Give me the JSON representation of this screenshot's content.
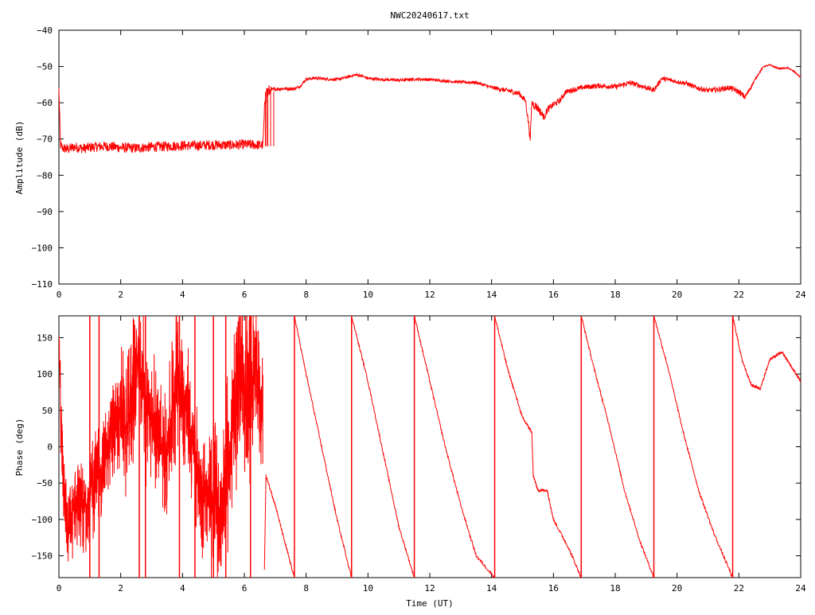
{
  "chart_data": [
    {
      "type": "line",
      "title": "NWC20240617.txt",
      "xlabel": "",
      "ylabel": "Amplitude (dB)",
      "xlim": [
        0,
        24
      ],
      "ylim": [
        -110,
        -40
      ],
      "x_ticks": [
        0,
        2,
        4,
        6,
        8,
        10,
        12,
        14,
        16,
        18,
        20,
        22,
        24
      ],
      "y_ticks": [
        -110,
        -100,
        -90,
        -80,
        -70,
        -60,
        -50,
        -40
      ],
      "x_tick_labels": [
        "0",
        "2",
        "4",
        "6",
        "8",
        "10",
        "12",
        "14",
        "16",
        "18",
        "20",
        "22",
        "24"
      ],
      "y_tick_labels": [
        "−110",
        "−100",
        "−90",
        "−80",
        "−70",
        "−60",
        "−50",
        "−40"
      ],
      "grid": false,
      "line_color": "#ff0000",
      "x": [
        0.0,
        0.05,
        0.1,
        0.3,
        0.5,
        0.8,
        1.0,
        1.3,
        1.6,
        2.0,
        2.5,
        3.0,
        3.5,
        4.0,
        4.5,
        5.0,
        5.5,
        6.0,
        6.3,
        6.6,
        6.68,
        6.75,
        6.9,
        7.0,
        7.3,
        7.6,
        7.8,
        8.0,
        8.3,
        8.7,
        9.0,
        9.3,
        9.6,
        9.8,
        10.0,
        10.5,
        11.0,
        11.5,
        12.0,
        12.5,
        13.0,
        13.5,
        14.0,
        14.3,
        14.6,
        14.9,
        15.0,
        15.1,
        15.2,
        15.25,
        15.3,
        15.5,
        15.7,
        15.8,
        16.0,
        16.2,
        16.4,
        16.6,
        17.0,
        17.5,
        18.0,
        18.5,
        18.8,
        19.0,
        19.2,
        19.3,
        19.5,
        19.7,
        20.0,
        20.3,
        20.6,
        21.0,
        21.4,
        21.7,
        22.0,
        22.2,
        22.4,
        22.6,
        22.8,
        23.0,
        23.3,
        23.6,
        23.8,
        24.0
      ],
      "values": [
        -56,
        -71.5,
        -72.5,
        -72.8,
        -72.2,
        -72.6,
        -72.3,
        -72.1,
        -72.0,
        -72.4,
        -72.5,
        -72.2,
        -72.0,
        -71.8,
        -71.8,
        -71.6,
        -71.7,
        -71.5,
        -71.6,
        -71.7,
        -58,
        -57,
        -56.5,
        -56.2,
        -56.1,
        -56.2,
        -55.5,
        -53.5,
        -53.2,
        -53.5,
        -53.6,
        -53.0,
        -52.3,
        -52.6,
        -53.3,
        -53.6,
        -53.8,
        -53.5,
        -53.6,
        -54.0,
        -54.3,
        -54.4,
        -55.8,
        -56.3,
        -56.8,
        -57.5,
        -58.5,
        -59.5,
        -66,
        -70,
        -60,
        -61.5,
        -64,
        -62,
        -60.5,
        -59.5,
        -57,
        -56.5,
        -55.7,
        -55.3,
        -55.6,
        -54.5,
        -55.3,
        -55.8,
        -56.5,
        -56.0,
        -53.3,
        -53.6,
        -54.2,
        -54.6,
        -55.8,
        -56.6,
        -56.3,
        -55.8,
        -57.0,
        -58.5,
        -55.5,
        -52.5,
        -50.0,
        -49.6,
        -50.6,
        -50.4,
        -51.5,
        -53.0
      ],
      "noise_amplitude": [
        0.3,
        1.4,
        1.4,
        1.4,
        1.4,
        1.4,
        1.4,
        1.4,
        1.4,
        1.4,
        1.4,
        1.4,
        1.4,
        1.4,
        1.4,
        1.4,
        1.4,
        1.4,
        1.4,
        1.4,
        2.5,
        2.5,
        0.6,
        0.5,
        0.5,
        0.5,
        0.4,
        0.4,
        0.4,
        0.4,
        0.4,
        0.4,
        0.4,
        0.4,
        0.4,
        0.4,
        0.4,
        0.4,
        0.4,
        0.4,
        0.4,
        0.4,
        0.5,
        0.6,
        0.7,
        0.8,
        0.8,
        0.8,
        1.2,
        1.2,
        1.2,
        1.2,
        1.0,
        1.0,
        0.8,
        0.8,
        0.7,
        0.7,
        0.7,
        0.7,
        0.7,
        0.7,
        0.7,
        0.7,
        0.7,
        0.7,
        0.6,
        0.6,
        0.6,
        0.6,
        0.7,
        0.7,
        0.7,
        0.7,
        0.8,
        0.8,
        0.5,
        0.3,
        0.2,
        0.2,
        0.2,
        0.2,
        0.2,
        0.2
      ]
    },
    {
      "type": "line",
      "title": "",
      "xlabel": "Time (UT)",
      "ylabel": "Phase (deg)",
      "xlim": [
        0,
        24
      ],
      "ylim": [
        -180,
        180
      ],
      "x_ticks": [
        0,
        2,
        4,
        6,
        8,
        10,
        12,
        14,
        16,
        18,
        20,
        22,
        24
      ],
      "y_ticks": [
        -150,
        -100,
        -50,
        0,
        50,
        100,
        150
      ],
      "x_tick_labels": [
        "0",
        "2",
        "4",
        "6",
        "8",
        "10",
        "12",
        "14",
        "16",
        "18",
        "20",
        "22",
        "24"
      ],
      "y_tick_labels": [
        "−150",
        "−100",
        "−50",
        "0",
        "50",
        "100",
        "150"
      ],
      "grid": false,
      "line_color": "#ff0000",
      "noisy_segment_x": [
        0.0,
        0.1,
        0.3,
        0.5,
        0.8,
        1.0,
        1.2,
        1.4,
        1.6,
        1.8,
        2.0,
        2.2,
        2.4,
        2.6,
        2.8,
        3.0,
        3.2,
        3.4,
        3.6,
        3.8,
        4.0,
        4.2,
        4.4,
        4.6,
        4.8,
        5.0,
        5.2,
        5.4,
        5.6,
        5.8,
        6.0,
        6.2,
        6.4,
        6.6
      ],
      "noisy_segment_center": [
        150,
        -20,
        -120,
        -80,
        -90,
        -60,
        -40,
        -30,
        0,
        20,
        50,
        20,
        80,
        120,
        60,
        40,
        20,
        -20,
        30,
        100,
        60,
        40,
        -20,
        -50,
        -80,
        -60,
        -100,
        -40,
        10,
        100,
        80,
        90,
        110,
        40
      ],
      "noisy_segment_amplitude": [
        30,
        80,
        60,
        70,
        80,
        90,
        90,
        80,
        90,
        90,
        100,
        110,
        120,
        130,
        120,
        110,
        100,
        110,
        120,
        130,
        120,
        110,
        100,
        100,
        110,
        120,
        130,
        140,
        150,
        160,
        160,
        150,
        140,
        100
      ],
      "smooth_x": [
        6.65,
        6.7,
        7.0,
        7.3,
        7.62,
        7.62,
        8.0,
        8.5,
        9.0,
        9.47,
        9.47,
        10.0,
        10.5,
        11.0,
        11.5,
        11.5,
        12.0,
        12.5,
        13.0,
        13.5,
        14.1,
        14.1,
        14.5,
        15.0,
        15.3,
        15.35,
        15.5,
        15.8,
        16.0,
        16.5,
        16.9,
        16.9,
        17.3,
        17.8,
        18.3,
        18.8,
        19.25,
        19.25,
        19.7,
        20.2,
        20.7,
        21.2,
        21.8,
        21.8,
        22.1,
        22.4,
        22.7,
        23.0,
        23.4,
        23.7,
        24.0
      ],
      "smooth_y": [
        -170,
        -40,
        -80,
        -130,
        -180,
        180,
        100,
        0,
        -100,
        -180,
        180,
        90,
        -10,
        -110,
        -180,
        180,
        90,
        0,
        -80,
        -150,
        -180,
        180,
        110,
        40,
        20,
        -40,
        -60,
        -60,
        -100,
        -140,
        -180,
        180,
        110,
        30,
        -60,
        -130,
        -180,
        180,
        110,
        20,
        -60,
        -120,
        -180,
        180,
        120,
        85,
        80,
        120,
        130,
        110,
        90
      ],
      "wrap_x": [
        1.0,
        1.3,
        2.6,
        2.8,
        3.9,
        4.4,
        5.0,
        5.4,
        6.2,
        7.62,
        9.47,
        11.5,
        14.1,
        16.9,
        19.25,
        21.8
      ]
    }
  ]
}
